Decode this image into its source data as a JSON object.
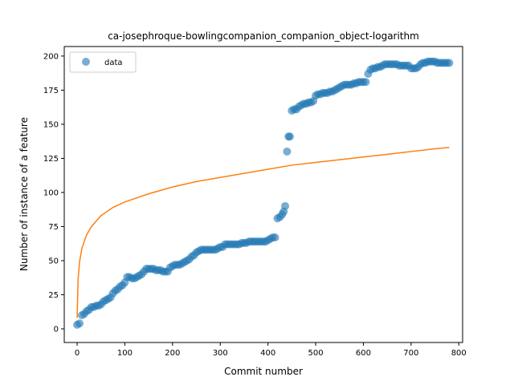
{
  "chart_data": {
    "type": "scatter",
    "title": "ca-josephroque-bowlingcompanion_companion_object-logarithm",
    "xlabel": "Commit number",
    "ylabel": "Number of instance of a feature",
    "xlim": [
      -27,
      808
    ],
    "ylim": [
      -10,
      207
    ],
    "xticks": [
      0,
      100,
      200,
      300,
      400,
      500,
      600,
      700,
      800
    ],
    "yticks": [
      0,
      25,
      50,
      75,
      100,
      125,
      150,
      175,
      200
    ],
    "grid": false,
    "legend": {
      "placement": "upper-left",
      "entries": [
        "data"
      ]
    },
    "colors": {
      "data": "#1f77b4",
      "fit": "#ff7f0e"
    },
    "series": [
      {
        "name": "data",
        "kind": "scatter",
        "x": [
          0,
          5,
          10,
          15,
          20,
          25,
          30,
          35,
          40,
          45,
          50,
          55,
          60,
          65,
          70,
          75,
          80,
          85,
          90,
          95,
          100,
          105,
          110,
          115,
          120,
          125,
          130,
          135,
          140,
          145,
          150,
          155,
          160,
          165,
          170,
          175,
          180,
          185,
          190,
          195,
          200,
          205,
          210,
          215,
          220,
          225,
          230,
          235,
          240,
          245,
          250,
          255,
          260,
          265,
          270,
          275,
          280,
          285,
          290,
          295,
          300,
          305,
          310,
          315,
          320,
          325,
          330,
          335,
          340,
          345,
          350,
          355,
          360,
          365,
          370,
          375,
          380,
          385,
          390,
          395,
          400,
          405,
          410,
          415,
          420,
          425,
          430,
          433,
          436,
          440,
          443,
          446,
          450,
          455,
          460,
          465,
          470,
          475,
          480,
          485,
          490,
          495,
          500,
          505,
          510,
          515,
          520,
          525,
          530,
          535,
          540,
          545,
          550,
          555,
          560,
          565,
          570,
          575,
          580,
          585,
          590,
          595,
          600,
          605,
          610,
          615,
          620,
          625,
          630,
          635,
          640,
          645,
          650,
          655,
          660,
          665,
          670,
          675,
          680,
          685,
          690,
          695,
          700,
          705,
          710,
          715,
          720,
          725,
          730,
          735,
          740,
          745,
          750,
          755,
          760,
          765,
          770,
          775,
          780
        ],
        "y": [
          3,
          4,
          10,
          11,
          13,
          14,
          16,
          16,
          17,
          17,
          18,
          20,
          21,
          22,
          23,
          26,
          28,
          29,
          31,
          32,
          34,
          38,
          38,
          37,
          37,
          38,
          39,
          40,
          42,
          44,
          44,
          44,
          44,
          43,
          43,
          43,
          42,
          42,
          42,
          45,
          46,
          47,
          47,
          47,
          48,
          49,
          50,
          51,
          53,
          54,
          56,
          57,
          58,
          58,
          58,
          58,
          58,
          58,
          58,
          59,
          60,
          60,
          62,
          62,
          62,
          62,
          62,
          62,
          62,
          63,
          63,
          63,
          64,
          64,
          64,
          64,
          64,
          64,
          64,
          64,
          65,
          66,
          67,
          67,
          81,
          82,
          84,
          86,
          90,
          130,
          141,
          141,
          160,
          161,
          161,
          163,
          164,
          165,
          165,
          166,
          166,
          167,
          171,
          172,
          172,
          173,
          173,
          173,
          174,
          174,
          175,
          176,
          177,
          178,
          179,
          179,
          179,
          179,
          180,
          180,
          181,
          181,
          181,
          181,
          187,
          190,
          191,
          191,
          192,
          192,
          193,
          194,
          194,
          194,
          194,
          194,
          194,
          193,
          193,
          193,
          193,
          193,
          191,
          191,
          191,
          192,
          194,
          195,
          195,
          196,
          196,
          196,
          196,
          195,
          195,
          195,
          195,
          195,
          195
        ]
      },
      {
        "name": "",
        "kind": "line",
        "model": "logarithmic",
        "x": [
          0,
          2,
          5,
          10,
          20,
          30,
          50,
          75,
          100,
          150,
          200,
          250,
          300,
          350,
          400,
          450,
          500,
          550,
          600,
          650,
          700,
          750,
          780
        ],
        "y": [
          8,
          36,
          49,
          59,
          69,
          75,
          83,
          89,
          93,
          99,
          104,
          108,
          111,
          114,
          117,
          120,
          122,
          124,
          126,
          128,
          130,
          132,
          133
        ]
      }
    ]
  }
}
